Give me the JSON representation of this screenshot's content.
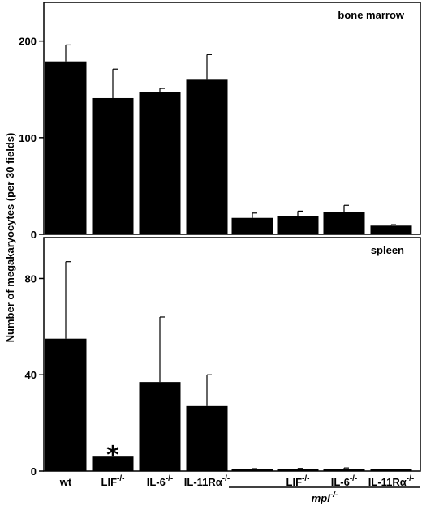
{
  "ylabel": "Number of megakaryocytes (per 30 fields)",
  "group_label": "mpl",
  "group_label_sup": "-/-",
  "category_labels": [
    {
      "base": "wt",
      "sup": ""
    },
    {
      "base": "LIF",
      "sup": "-/-"
    },
    {
      "base": "IL-6",
      "sup": "-/-"
    },
    {
      "base": "IL-11Rα",
      "sup": "-/-"
    },
    {
      "base": "",
      "sup": ""
    },
    {
      "base": "LIF",
      "sup": "-/-"
    },
    {
      "base": "IL-6",
      "sup": "-/-"
    },
    {
      "base": "IL-11Rα",
      "sup": "-/-"
    }
  ],
  "chart_data": [
    {
      "type": "bar",
      "title": "bone marrow",
      "categories": [
        "wt",
        "LIF-/-",
        "IL-6-/-",
        "IL-11Rα-/-",
        "mpl-/-",
        "mpl-/- LIF-/-",
        "mpl-/- IL-6-/-",
        "mpl-/- IL-11Rα-/-"
      ],
      "values": [
        179,
        141,
        147,
        160,
        17,
        19,
        23,
        9
      ],
      "errors": [
        17,
        30,
        4,
        26,
        5,
        5,
        7,
        1
      ],
      "ylim": [
        0,
        240
      ],
      "yticks": [
        0,
        100,
        200
      ],
      "bar_color": "#000000",
      "annotations": []
    },
    {
      "type": "bar",
      "title": "spleen",
      "categories": [
        "wt",
        "LIF-/-",
        "IL-6-/-",
        "IL-11Rα-/-",
        "mpl-/-",
        "mpl-/- LIF-/-",
        "mpl-/- IL-6-/-",
        "mpl-/- IL-11Rα-/-"
      ],
      "values": [
        55,
        6,
        37,
        27,
        0.5,
        0.3,
        0.3,
        0.3
      ],
      "errors": [
        32,
        3,
        27,
        13,
        0.5,
        0.8,
        1,
        0.5
      ],
      "ylim": [
        0,
        97
      ],
      "yticks": [
        0,
        40,
        80
      ],
      "bar_color": "#000000",
      "annotations": [
        {
          "text": "*",
          "category": "LIF-/-"
        }
      ]
    }
  ]
}
